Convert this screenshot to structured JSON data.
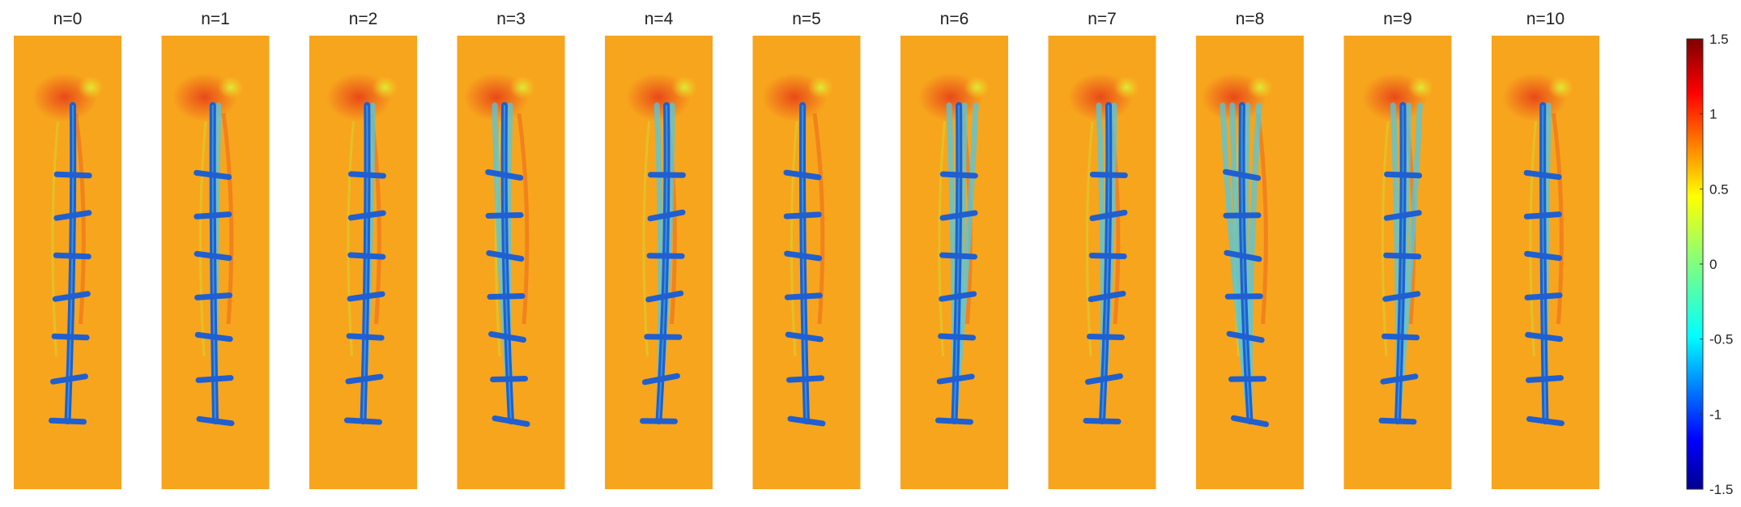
{
  "figure": {
    "panels": [
      {
        "title": "n=0"
      },
      {
        "title": "n=1"
      },
      {
        "title": "n=2"
      },
      {
        "title": "n=3"
      },
      {
        "title": "n=4"
      },
      {
        "title": "n=5"
      },
      {
        "title": "n=6"
      },
      {
        "title": "n=7"
      },
      {
        "title": "n=8"
      },
      {
        "title": "n=9"
      },
      {
        "title": "n=10"
      }
    ],
    "colorbar": {
      "min": -1.5,
      "max": 1.5,
      "colormap": "jet",
      "ticks": [
        "1.5",
        "1",
        "0.5",
        "0",
        "-0.5",
        "-1",
        "-1.5"
      ],
      "tick_values": [
        1.5,
        1,
        0.5,
        0,
        -0.5,
        -1,
        -1.5
      ]
    },
    "colors": {
      "background_field": "#f7a51d",
      "body": "#1f5fd0",
      "ghost_body": "#4fc8e6",
      "hot_region": "#e8421a",
      "green_region": "#c8e23a"
    }
  }
}
